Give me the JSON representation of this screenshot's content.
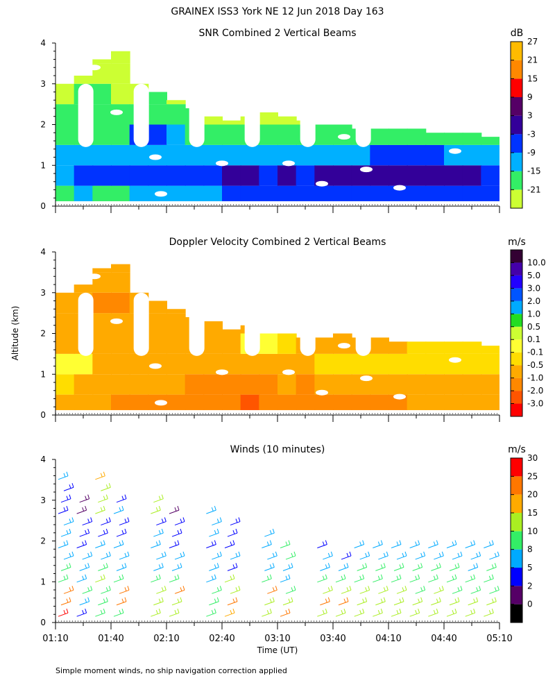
{
  "header": {
    "title": "GRAINEX ISS3 York NE  12 Jun 2018 Day 163"
  },
  "shared_axes": {
    "y_label": "Altitude (km)",
    "x_label": "Time (UT)",
    "y_ticks": [
      "0",
      "1",
      "2",
      "3",
      "4"
    ],
    "x_ticks": [
      "01:10",
      "01:40",
      "02:10",
      "02:40",
      "03:10",
      "03:40",
      "04:10",
      "04:40",
      "05:10"
    ]
  },
  "footnote": "Simple moment winds, no ship navigation correction applied",
  "colors": {
    "snr": [
      "#ccff33",
      "#33ee66",
      "#00b0ff",
      "#0033ff",
      "#330099",
      "#550066",
      "#ff0000",
      "#ff8800",
      "#ffbb00"
    ],
    "doppler": [
      "#ff0000",
      "#ff5500",
      "#ff8800",
      "#ffaa00",
      "#ffdd00",
      "#ffff33",
      "#ccff33",
      "#22dd22",
      "#00aaff",
      "#0055ff",
      "#2200ff",
      "#4400aa",
      "#330033"
    ],
    "winds": [
      "#000000",
      "#550066",
      "#0000ff",
      "#00aaff",
      "#33ee66",
      "#aaee22",
      "#ffaa00",
      "#ff7700",
      "#ff0000"
    ]
  },
  "chart_data": [
    {
      "type": "heatmap",
      "title": "SNR Combined 2 Vertical Beams",
      "xlabel": "Time (UT)",
      "ylabel": "Altitude (km)",
      "xlim": [
        "01:10",
        "05:10"
      ],
      "ylim": [
        0,
        4
      ],
      "colorbar": {
        "unit": "dB",
        "labels": [
          "-21",
          "-15",
          "-9",
          "-3",
          "3",
          "9",
          "15",
          "21",
          "27"
        ]
      },
      "field": {
        "times": [
          "01:10",
          "01:20",
          "01:30",
          "01:40",
          "01:50",
          "02:00",
          "02:10",
          "02:20",
          "02:30",
          "02:40",
          "02:50",
          "03:00",
          "03:10",
          "03:20",
          "03:30",
          "03:40",
          "03:50",
          "04:00",
          "04:10",
          "04:20",
          "04:30",
          "04:40",
          "04:50",
          "05:00"
        ],
        "top_km": [
          3.0,
          3.2,
          3.6,
          3.8,
          3.0,
          2.8,
          2.6,
          2.4,
          2.2,
          2.1,
          2.2,
          2.3,
          2.2,
          2.1,
          2.0,
          2.0,
          1.9,
          1.9,
          1.9,
          1.9,
          1.8,
          1.8,
          1.8,
          1.7
        ],
        "levels_km": [
          0.25,
          0.75,
          1.25,
          1.75,
          2.25,
          2.75,
          3.25,
          3.75
        ],
        "values_db": [
          [
            -12,
            -6,
            -9,
            -15,
            -15,
            -21,
            -21,
            -21
          ],
          [
            -10,
            -3,
            -9,
            -12,
            -15,
            -15,
            -18,
            -21
          ],
          [
            -12,
            -3,
            -6,
            -12,
            -15,
            -15,
            -18,
            -18
          ],
          [
            -12,
            -3,
            -9,
            -12,
            -15,
            -18,
            -18,
            -21
          ],
          [
            -10,
            -3,
            -9,
            -3,
            -15,
            -18,
            -21,
            -21
          ],
          [
            -10,
            -3,
            -9,
            -3,
            -12,
            -15,
            -21,
            -21
          ],
          [
            -9,
            -3,
            -9,
            -6,
            -15,
            -18,
            -21,
            -21
          ],
          [
            -9,
            -3,
            -9,
            -12,
            -15,
            -21,
            -21,
            -21
          ],
          [
            -6,
            0,
            -9,
            -12,
            -18,
            -21,
            -21,
            -21
          ],
          [
            -3,
            3,
            -9,
            -12,
            -18,
            -21,
            -21,
            -21
          ],
          [
            -3,
            3,
            -9,
            -12,
            -21,
            -21,
            -21,
            -21
          ],
          [
            -3,
            0,
            -9,
            -15,
            -21,
            -21,
            -21,
            -21
          ],
          [
            -3,
            3,
            -9,
            -15,
            -21,
            -21,
            -21,
            -21
          ],
          [
            -3,
            0,
            -9,
            -15,
            -21,
            -21,
            -21,
            -21
          ],
          [
            -3,
            3,
            -6,
            -15,
            -21,
            -21,
            -21,
            -21
          ],
          [
            -3,
            3,
            -9,
            -15,
            -21,
            -21,
            -21,
            -21
          ],
          [
            0,
            3,
            -6,
            -15,
            -21,
            -21,
            -21,
            -21
          ],
          [
            -3,
            3,
            -3,
            -15,
            -21,
            -21,
            -21,
            -21
          ],
          [
            -3,
            6,
            -3,
            -15,
            -21,
            -21,
            -21,
            -21
          ],
          [
            -3,
            3,
            -3,
            -15,
            -21,
            -21,
            -21,
            -21
          ],
          [
            -3,
            6,
            -3,
            -15,
            -21,
            -21,
            -21,
            -21
          ],
          [
            -3,
            3,
            -6,
            -15,
            -21,
            -21,
            -21,
            -21
          ],
          [
            -3,
            3,
            -9,
            -15,
            -21,
            -21,
            -21,
            -21
          ],
          [
            -3,
            0,
            -9,
            -15,
            -21,
            -21,
            -21,
            -21
          ]
        ]
      }
    },
    {
      "type": "heatmap",
      "title": "Doppler Velocity Combined 2 Vertical Beams",
      "xlabel": "Time (UT)",
      "ylabel": "Altitude (km)",
      "xlim": [
        "01:10",
        "05:10"
      ],
      "ylim": [
        0,
        4
      ],
      "colorbar": {
        "unit": "m/s",
        "labels": [
          "-3.0",
          "-2.0",
          "-1.0",
          "-0.5",
          "-0.1",
          "0.1",
          "0.5",
          "1.0",
          "2.0",
          "3.0",
          "5.0",
          "10.0"
        ]
      },
      "field": {
        "times": [
          "01:10",
          "01:20",
          "01:30",
          "01:40",
          "01:50",
          "02:00",
          "02:10",
          "02:20",
          "02:30",
          "02:40",
          "02:50",
          "03:00",
          "03:10",
          "03:20",
          "03:30",
          "03:40",
          "03:50",
          "04:00",
          "04:10",
          "04:20",
          "04:30",
          "04:40",
          "04:50",
          "05:00"
        ],
        "top_km": [
          3.0,
          3.2,
          3.6,
          3.7,
          3.0,
          2.8,
          2.6,
          2.4,
          2.3,
          2.1,
          2.2,
          2.0,
          2.0,
          1.9,
          1.9,
          2.0,
          1.9,
          1.9,
          1.8,
          1.8,
          1.8,
          1.8,
          1.8,
          1.7
        ],
        "levels_km": [
          0.25,
          0.75,
          1.25,
          1.75,
          2.25,
          2.75,
          3.25,
          3.75
        ],
        "values_ms": [
          [
            -0.3,
            -0.2,
            0.05,
            -0.3,
            -0.5,
            -0.5,
            -0.5,
            -0.5
          ],
          [
            -0.4,
            -0.3,
            0.2,
            -0.5,
            -0.5,
            -0.5,
            -0.5,
            -0.5
          ],
          [
            -0.6,
            -0.4,
            -0.3,
            -0.5,
            -0.6,
            -0.8,
            -0.5,
            -0.5
          ],
          [
            -0.8,
            -0.5,
            -0.3,
            -0.6,
            -0.7,
            -0.9,
            -0.5,
            -0.5
          ],
          [
            -0.8,
            -0.6,
            -0.3,
            -0.6,
            -0.6,
            -0.7,
            -0.5,
            -0.5
          ],
          [
            -0.9,
            -0.6,
            -0.3,
            -0.5,
            -0.6,
            -0.6,
            -0.5,
            -0.5
          ],
          [
            -1.1,
            -0.7,
            -0.3,
            -0.5,
            -0.6,
            -0.5,
            -0.5,
            -0.5
          ],
          [
            -1.2,
            -0.8,
            -0.3,
            -0.5,
            -0.6,
            -0.5,
            -0.5,
            -0.5
          ],
          [
            -1.2,
            -0.8,
            -0.4,
            -0.5,
            -0.6,
            -0.5,
            -0.5,
            -0.5
          ],
          [
            -1.3,
            -0.9,
            -0.4,
            -0.6,
            -0.5,
            -0.5,
            -0.5,
            -0.5
          ],
          [
            -1.5,
            -1.0,
            -0.4,
            0.3,
            -0.5,
            -0.5,
            -0.5,
            -0.5
          ],
          [
            -1.3,
            -0.9,
            -0.3,
            0.3,
            -0.5,
            -0.5,
            -0.5,
            -0.5
          ],
          [
            -1.1,
            -0.7,
            -0.3,
            -0.2,
            -0.5,
            -0.5,
            -0.5,
            -0.5
          ],
          [
            -1.3,
            -0.8,
            -0.3,
            -0.3,
            -0.5,
            -0.5,
            -0.5,
            -0.5
          ],
          [
            -1.1,
            -0.7,
            -0.2,
            -0.3,
            -0.5,
            -0.5,
            -0.5,
            -0.5
          ],
          [
            -0.9,
            -0.6,
            -0.2,
            -0.4,
            -0.5,
            -0.5,
            -0.5,
            -0.5
          ],
          [
            -0.9,
            -0.6,
            -0.2,
            -0.3,
            -0.5,
            -0.5,
            -0.5,
            -0.5
          ],
          [
            -0.8,
            -0.5,
            -0.2,
            -0.3,
            -0.5,
            -0.5,
            -0.5,
            -0.5
          ],
          [
            -0.8,
            -0.5,
            -0.2,
            -0.3,
            -0.5,
            -0.5,
            -0.5,
            -0.5
          ],
          [
            -0.7,
            -0.4,
            -0.2,
            -0.2,
            -0.5,
            -0.5,
            -0.5,
            -0.5
          ],
          [
            -0.7,
            -0.4,
            -0.1,
            -0.2,
            -0.5,
            -0.5,
            -0.5,
            -0.5
          ],
          [
            -0.6,
            -0.3,
            -0.1,
            -0.2,
            -0.5,
            -0.5,
            -0.5,
            -0.5
          ],
          [
            -0.6,
            -0.3,
            -0.1,
            -0.2,
            -0.5,
            -0.5,
            -0.5,
            -0.5
          ],
          [
            -0.5,
            -0.3,
            -0.1,
            -0.2,
            -0.5,
            -0.5,
            -0.5,
            -0.5
          ]
        ]
      }
    },
    {
      "type": "scatter",
      "title": "Winds (10 minutes)",
      "xlabel": "Time (UT)",
      "ylabel": "Altitude (km)",
      "xlim": [
        "01:10",
        "05:10"
      ],
      "ylim": [
        0,
        4
      ],
      "colorbar": {
        "unit": "m/s",
        "labels": [
          "0",
          "2",
          "5",
          "8",
          "10",
          "15",
          "20",
          "25",
          "30"
        ]
      },
      "wind_profiles": [
        {
          "time": "01:10",
          "speeds": [
            28,
            26,
            24,
            12,
            10,
            8,
            9,
            8,
            7,
            6,
            5,
            6,
            7
          ]
        },
        {
          "time": "01:20",
          "speeds": [
            6,
            9,
            10,
            8,
            8,
            7,
            5,
            5,
            4,
            3,
            2
          ]
        },
        {
          "time": "01:30",
          "speeds": [
            10,
            10,
            12,
            13,
            10,
            8,
            8,
            6,
            5,
            15,
            15,
            16,
            18
          ]
        },
        {
          "time": "01:40",
          "speeds": [
            10,
            24,
            24,
            10,
            9,
            8,
            7,
            6,
            6,
            7,
            4
          ]
        },
        {
          "time": "02:00",
          "speeds": [
            13,
            13,
            13,
            12,
            8,
            8,
            7,
            7,
            6,
            14,
            16
          ]
        },
        {
          "time": "02:10",
          "speeds": [
            15,
            14,
            25,
            10,
            8,
            7,
            6,
            5,
            5,
            3
          ]
        },
        {
          "time": "02:30",
          "speeds": [
            10,
            10,
            10,
            9,
            9,
            8,
            6,
            7,
            8,
            7
          ]
        },
        {
          "time": "02:40",
          "speeds": [
            18,
            25,
            15,
            14,
            6,
            8,
            6,
            5,
            4
          ]
        },
        {
          "time": "03:00",
          "speeds": [
            15,
            13,
            25,
            12,
            8,
            8,
            7,
            9
          ]
        },
        {
          "time": "03:10",
          "speeds": [
            24,
            14,
            10,
            8,
            9,
            10,
            12
          ]
        },
        {
          "time": "03:30",
          "speeds": [
            16,
            25,
            13,
            12,
            8,
            9,
            4
          ]
        },
        {
          "time": "03:40",
          "speeds": [
            13,
            25,
            13,
            10,
            8,
            4
          ]
        },
        {
          "time": "03:50",
          "speeds": [
            14,
            14,
            13,
            12,
            10,
            8,
            8
          ]
        },
        {
          "time": "04:00",
          "speeds": [
            13,
            13,
            13,
            12,
            10,
            8,
            8
          ]
        },
        {
          "time": "04:10",
          "speeds": [
            14,
            14,
            13,
            12,
            10,
            8,
            8
          ]
        },
        {
          "time": "04:20",
          "speeds": [
            14,
            13,
            12,
            11,
            10,
            8,
            8
          ]
        },
        {
          "time": "04:30",
          "speeds": [
            14,
            13,
            13,
            12,
            10,
            8,
            8
          ]
        },
        {
          "time": "04:40",
          "speeds": [
            13,
            13,
            12,
            11,
            10,
            8,
            8
          ]
        },
        {
          "time": "04:50",
          "speeds": [
            14,
            13,
            12,
            11,
            9,
            8,
            8
          ]
        },
        {
          "time": "05:00",
          "speeds": [
            13,
            13,
            12,
            11,
            10,
            8,
            8
          ]
        }
      ]
    }
  ]
}
